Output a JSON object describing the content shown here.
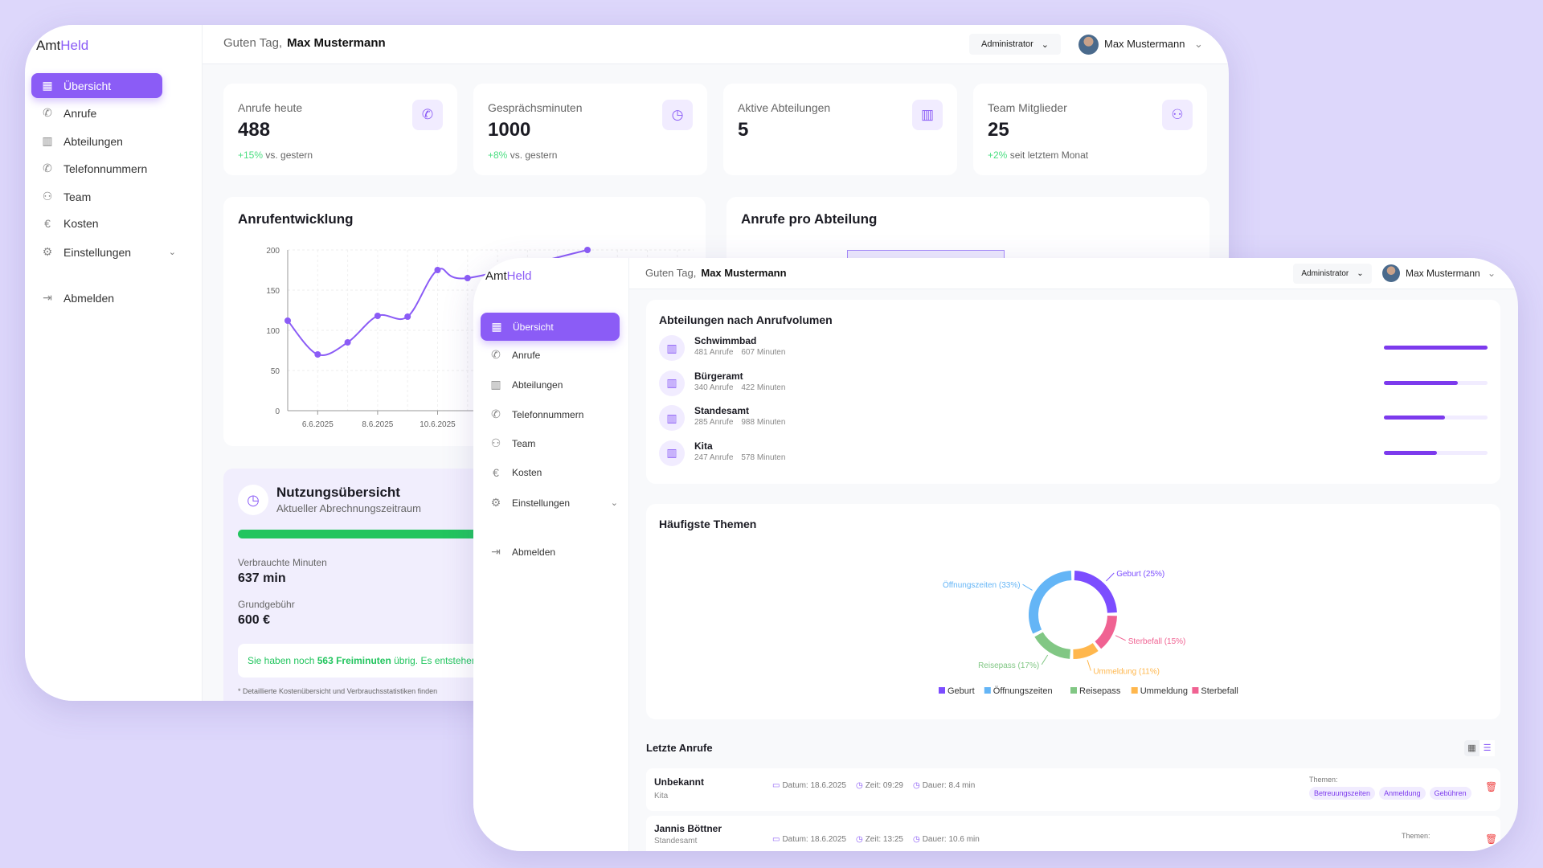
{
  "app": {
    "logo_a": "Amt",
    "logo_b": "Held",
    "accent": "#8b5cf6"
  },
  "nav": [
    {
      "label": "Übersicht",
      "icon": "grid-icon"
    },
    {
      "label": "Anrufe",
      "icon": "phone-icon"
    },
    {
      "label": "Abteilungen",
      "icon": "building-icon"
    },
    {
      "label": "Telefonnummern",
      "icon": "phone-icon"
    },
    {
      "label": "Team",
      "icon": "users-icon"
    },
    {
      "label": "Kosten",
      "icon": "euro-icon"
    },
    {
      "label": "Einstellungen",
      "icon": "gear-icon"
    }
  ],
  "logout": "Abmelden",
  "header": {
    "greeting": "Guten Tag,",
    "user": "Max Mustermann",
    "role": "Administrator"
  },
  "stats": [
    {
      "label": "Anrufe heute",
      "value": "488",
      "change": "+15%",
      "suffix": "vs. gestern",
      "icon": "phone-icon"
    },
    {
      "label": "Gesprächsminuten",
      "value": "1000",
      "change": "+8%",
      "suffix": "vs. gestern",
      "icon": "clock-icon"
    },
    {
      "label": "Aktive Abteilungen",
      "value": "5",
      "change": "",
      "suffix": "",
      "icon": "building-icon"
    },
    {
      "label": "Team Mitglieder",
      "value": "25",
      "change": "+2%",
      "suffix": "seit letztem Monat",
      "icon": "users-icon"
    }
  ],
  "chart_data": [
    {
      "type": "line",
      "title": "Anrufentwicklung",
      "x": [
        "5.6.2025",
        "6.6.2025",
        "7.6.2025",
        "8.6.2025",
        "9.6.2025",
        "10.6.2025",
        "11.6.2025",
        "15.6.2025"
      ],
      "values": [
        112,
        70,
        85,
        118,
        117,
        175,
        165,
        200
      ],
      "x_tick_labels": [
        "6.6.2025",
        "8.6.2025",
        "10.6.2025"
      ],
      "y_ticks": [
        0,
        50,
        100,
        150,
        200
      ],
      "ylim": [
        0,
        200
      ],
      "grid": true,
      "color": "#8b5cf6"
    },
    {
      "type": "pie",
      "title": "Häufigste Themen",
      "categories": [
        "Geburt",
        "Sterbefall",
        "Ummeldung",
        "Reisepass",
        "Öffnungszeiten"
      ],
      "values": [
        25,
        15,
        11,
        17,
        33
      ],
      "colors": [
        "#7c4dff",
        "#f06292",
        "#ffb74d",
        "#81c784",
        "#64b5f6"
      ],
      "legend_order": [
        "Geburt",
        "Öffnungszeiten",
        "Reisepass",
        "Ummeldung",
        "Sterbefall"
      ],
      "legend": "bottom"
    }
  ],
  "dept_chart_title": "Anrufe pro Abteilung",
  "usage": {
    "title": "Nutzungsübersicht",
    "subtitle": "Aktueller Abrechnungszeitraum",
    "progress": 1.0,
    "used_label": "Verbrauchte Minuten",
    "used": "637 min",
    "fee_label": "Grundgebühr",
    "fee": "600 €",
    "note_a": "Sie haben noch",
    "note_b": "563 Freiminuten",
    "note_c": "übrig. Es entstehen",
    "footnote": "* Detaillierte Kostenübersicht und Verbrauchsstatistiken finden"
  },
  "departments": {
    "title": "Abteilungen nach Anrufvolumen",
    "items": [
      {
        "name": "Schwimmbad",
        "calls": "481 Anrufe",
        "minutes": "607 Minuten",
        "share": 1.0
      },
      {
        "name": "Bürgeramt",
        "calls": "340 Anrufe",
        "minutes": "422 Minuten",
        "share": 0.71
      },
      {
        "name": "Standesamt",
        "calls": "285 Anrufe",
        "minutes": "988 Minuten",
        "share": 0.59
      },
      {
        "name": "Kita",
        "calls": "247 Anrufe",
        "minutes": "578 Minuten",
        "share": 0.51
      }
    ]
  },
  "recent": {
    "title": "Letzte Anrufe",
    "themes_label": "Themen:",
    "items": [
      {
        "name": "Unbekannt",
        "dept": "Kita",
        "date": "Datum: 18.6.2025",
        "time": "Zeit: 09:29",
        "duration": "Dauer: 8.4 min",
        "tags": [
          "Betreuungszeiten",
          "Anmeldung",
          "Gebühren"
        ]
      },
      {
        "name": "Jannis Böttner",
        "dept": "Standesamt",
        "date": "Datum: 18.6.2025",
        "time": "Zeit: 13:25",
        "duration": "Dauer: 10.6 min",
        "tags": []
      }
    ]
  }
}
